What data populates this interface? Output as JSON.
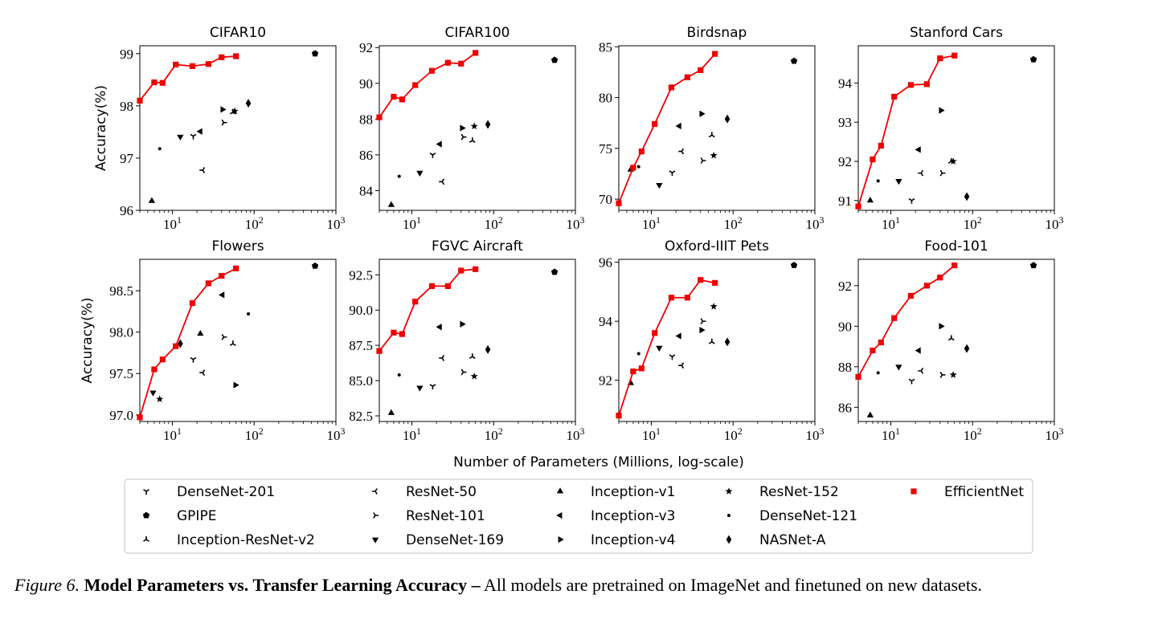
{
  "figure": {
    "xlabel": "Number of Parameters (Millions, log-scale)",
    "ylabel": "Accuracy(%)"
  },
  "caption": {
    "label": "Figure 6.",
    "title": "Model Parameters vs. Transfer Learning Accuracy –",
    "text": "All models are pretrained on ImageNet and finetuned on new datasets."
  },
  "legend": {
    "placement": "bottom-center",
    "entries": [
      {
        "name": "DenseNet-201",
        "marker": "tri-down-small"
      },
      {
        "name": "GPIPE",
        "marker": "pentagon"
      },
      {
        "name": "Inception-ResNet-v2",
        "marker": "tri-up-small"
      },
      {
        "name": "ResNet-50",
        "marker": "tri-left-small"
      },
      {
        "name": "ResNet-101",
        "marker": "tri-right-small"
      },
      {
        "name": "DenseNet-169",
        "marker": "triangle-down"
      },
      {
        "name": "Inception-v1",
        "marker": "triangle-up"
      },
      {
        "name": "Inception-v3",
        "marker": "triangle-left"
      },
      {
        "name": "Inception-v4",
        "marker": "triangle-right"
      },
      {
        "name": "ResNet-152",
        "marker": "star"
      },
      {
        "name": "DenseNet-121",
        "marker": "point"
      },
      {
        "name": "NASNet-A",
        "marker": "thin-diamond"
      },
      {
        "name": "EfficientNet",
        "marker": "square",
        "color": "#ee0000"
      }
    ]
  },
  "chart_data": [
    {
      "type": "scatter",
      "title": "CIFAR10",
      "xscale": "log",
      "xlim": [
        4,
        1000
      ],
      "ylim": [
        96,
        99.15
      ],
      "yticks": [
        "96",
        "97",
        "98",
        "99"
      ],
      "xticks": [
        "10^1",
        "10^2",
        "10^3"
      ],
      "ylabel_shown": true,
      "points": {
        "DenseNet-201": [
          18,
          97.42
        ],
        "GPIPE": [
          556,
          99.0
        ],
        "Inception-ResNet-v2": [
          55,
          97.88
        ],
        "ResNet-50": [
          23.5,
          96.77
        ],
        "ResNet-101": [
          42.5,
          97.68
        ],
        "DenseNet-169": [
          12.5,
          97.41
        ],
        "Inception-v1": [
          5.6,
          96.18
        ],
        "Inception-v3": [
          22,
          97.51
        ],
        "Inception-v4": [
          41,
          97.93
        ],
        "ResNet-152": [
          58,
          97.9
        ],
        "DenseNet-121": [
          7,
          97.18
        ],
        "NASNet-A": [
          85,
          98.05
        ]
      },
      "efficientnet": {
        "x": [
          4,
          6,
          7.6,
          11,
          17.6,
          27.6,
          40,
          60
        ],
        "y": [
          98.1,
          98.45,
          98.44,
          98.79,
          98.76,
          98.8,
          98.93,
          98.95
        ]
      }
    },
    {
      "type": "scatter",
      "title": "CIFAR100",
      "xscale": "log",
      "xlim": [
        4,
        1000
      ],
      "ylim": [
        82.9,
        92.1
      ],
      "yticks": [
        "84",
        "86",
        "88",
        "90",
        "92"
      ],
      "xticks": [
        "10^1",
        "10^2",
        "10^3"
      ],
      "ylabel_shown": false,
      "points": {
        "DenseNet-201": [
          18,
          86.0
        ],
        "GPIPE": [
          556,
          91.3
        ],
        "Inception-ResNet-v2": [
          55,
          86.8
        ],
        "ResNet-50": [
          23.5,
          84.5
        ],
        "ResNet-101": [
          42.5,
          87.0
        ],
        "DenseNet-169": [
          12.5,
          85.0
        ],
        "Inception-v1": [
          5.6,
          83.2
        ],
        "Inception-v3": [
          22,
          86.6
        ],
        "Inception-v4": [
          41,
          87.5
        ],
        "ResNet-152": [
          58,
          87.6
        ],
        "DenseNet-121": [
          7,
          84.8
        ],
        "NASNet-A": [
          85,
          87.7
        ]
      },
      "efficientnet": {
        "x": [
          4,
          6,
          7.6,
          11,
          17.6,
          27.6,
          40,
          60
        ],
        "y": [
          88.1,
          89.25,
          89.1,
          89.9,
          90.7,
          91.15,
          91.1,
          91.7
        ]
      }
    },
    {
      "type": "scatter",
      "title": "Birdsnap",
      "xscale": "log",
      "xlim": [
        4,
        1000
      ],
      "ylim": [
        68.9,
        85.1
      ],
      "yticks": [
        "70",
        "75",
        "80",
        "85"
      ],
      "xticks": [
        "10^1",
        "10^2",
        "10^3"
      ],
      "ylabel_shown": false,
      "points": {
        "DenseNet-201": [
          18,
          72.6
        ],
        "GPIPE": [
          556,
          83.6
        ],
        "Inception-ResNet-v2": [
          55,
          76.3
        ],
        "ResNet-50": [
          23.5,
          74.7
        ],
        "ResNet-101": [
          42.5,
          73.8
        ],
        "DenseNet-169": [
          12.5,
          71.4
        ],
        "Inception-v1": [
          5.6,
          72.9
        ],
        "Inception-v3": [
          22,
          77.2
        ],
        "Inception-v4": [
          41,
          78.4
        ],
        "ResNet-152": [
          58,
          74.3
        ],
        "DenseNet-121": [
          7,
          73.2
        ],
        "NASNet-A": [
          85,
          77.9
        ]
      },
      "efficientnet": {
        "x": [
          4,
          6,
          7.6,
          11,
          17.6,
          27.6,
          40,
          60
        ],
        "y": [
          69.6,
          73.1,
          74.7,
          77.4,
          81.0,
          82.0,
          82.7,
          84.3
        ]
      }
    },
    {
      "type": "scatter",
      "title": "Stanford Cars",
      "xscale": "log",
      "xlim": [
        4,
        1000
      ],
      "ylim": [
        90.75,
        94.95
      ],
      "yticks": [
        "91",
        "92",
        "93",
        "94"
      ],
      "xticks": [
        "10^1",
        "10^2",
        "10^3"
      ],
      "ylabel_shown": false,
      "points": {
        "DenseNet-201": [
          18,
          91.0
        ],
        "GPIPE": [
          556,
          94.6
        ],
        "Inception-ResNet-v2": [
          55,
          92.0
        ],
        "ResNet-50": [
          23.5,
          91.7
        ],
        "ResNet-101": [
          42.5,
          91.7
        ],
        "DenseNet-169": [
          12.5,
          91.5
        ],
        "Inception-v1": [
          5.6,
          91.0
        ],
        "Inception-v3": [
          22,
          92.3
        ],
        "Inception-v4": [
          41,
          93.3
        ],
        "ResNet-152": [
          58,
          92.0
        ],
        "DenseNet-121": [
          7,
          91.5
        ],
        "NASNet-A": [
          85,
          91.1
        ]
      },
      "efficientnet": {
        "x": [
          4,
          6,
          7.6,
          11,
          17.6,
          27.6,
          40,
          60
        ],
        "y": [
          90.85,
          92.05,
          92.4,
          93.65,
          93.95,
          93.97,
          94.63,
          94.7
        ]
      }
    },
    {
      "type": "scatter",
      "title": "Flowers",
      "xscale": "log",
      "xlim": [
        4,
        1000
      ],
      "ylim": [
        96.92,
        98.88
      ],
      "yticks": [
        "97.0",
        "97.5",
        "98.0",
        "98.5"
      ],
      "xticks": [
        "10^1",
        "10^2",
        "10^3"
      ],
      "ylabel_shown": true,
      "points": {
        "DenseNet-201": [
          18,
          97.67
        ],
        "GPIPE": [
          556,
          98.8
        ],
        "Inception-ResNet-v2": [
          55,
          97.86
        ],
        "ResNet-50": [
          23.5,
          97.51
        ],
        "ResNet-101": [
          42.5,
          97.94
        ],
        "DenseNet-169": [
          5.8,
          97.27
        ],
        "Inception-v1": [
          22,
          97.98
        ],
        "Inception-v3": [
          41,
          98.45
        ],
        "Inception-v4": [
          59,
          97.36
        ],
        "ResNet-152": [
          7,
          97.19
        ],
        "DenseNet-121": [
          85,
          98.22
        ],
        "NASNet-A": [
          12.5,
          97.86
        ]
      },
      "efficientnet": {
        "x": [
          4,
          6,
          7.6,
          11,
          17.6,
          27.6,
          40,
          60
        ],
        "y": [
          96.97,
          97.55,
          97.67,
          97.83,
          98.35,
          98.59,
          98.68,
          98.77
        ]
      }
    },
    {
      "type": "scatter",
      "title": "FGVC Aircraft",
      "xscale": "log",
      "xlim": [
        4,
        1000
      ],
      "ylim": [
        82.1,
        93.6
      ],
      "yticks": [
        "82.5",
        "85.0",
        "87.5",
        "90.0",
        "92.5"
      ],
      "xticks": [
        "10^1",
        "10^2",
        "10^3"
      ],
      "ylabel_shown": false,
      "points": {
        "DenseNet-201": [
          18,
          84.6
        ],
        "GPIPE": [
          556,
          92.7
        ],
        "Inception-ResNet-v2": [
          55,
          86.7
        ],
        "ResNet-50": [
          23.5,
          86.6
        ],
        "ResNet-101": [
          42.5,
          85.6
        ],
        "DenseNet-169": [
          12.5,
          84.5
        ],
        "Inception-v1": [
          5.6,
          82.7
        ],
        "Inception-v3": [
          22,
          88.8
        ],
        "Inception-v4": [
          41,
          89.0
        ],
        "ResNet-152": [
          58,
          85.3
        ],
        "DenseNet-121": [
          7,
          85.4
        ],
        "NASNet-A": [
          85,
          87.2
        ]
      },
      "efficientnet": {
        "x": [
          4,
          6,
          7.6,
          11,
          17.6,
          27.6,
          40,
          60
        ],
        "y": [
          87.1,
          88.4,
          88.3,
          90.6,
          91.7,
          91.7,
          92.8,
          92.9
        ]
      }
    },
    {
      "type": "scatter",
      "title": "Oxford-IIIT Pets",
      "xscale": "log",
      "xlim": [
        4,
        1000
      ],
      "ylim": [
        90.6,
        96.1
      ],
      "yticks": [
        "92",
        "94",
        "96"
      ],
      "xticks": [
        "10^1",
        "10^2",
        "10^3"
      ],
      "ylabel_shown": false,
      "points": {
        "DenseNet-201": [
          18,
          92.8
        ],
        "GPIPE": [
          556,
          95.9
        ],
        "Inception-ResNet-v2": [
          55,
          93.3
        ],
        "ResNet-50": [
          23.5,
          92.5
        ],
        "ResNet-101": [
          42.5,
          94.0
        ],
        "DenseNet-169": [
          12.5,
          93.1
        ],
        "Inception-v1": [
          5.6,
          91.9
        ],
        "Inception-v3": [
          22,
          93.5
        ],
        "Inception-v4": [
          41,
          93.7
        ],
        "ResNet-152": [
          58,
          94.5
        ],
        "DenseNet-121": [
          7,
          92.9
        ],
        "NASNet-A": [
          85,
          93.3
        ]
      },
      "efficientnet": {
        "x": [
          4,
          6,
          7.6,
          11,
          17.6,
          27.6,
          40,
          60
        ],
        "y": [
          90.8,
          92.3,
          92.4,
          93.6,
          94.8,
          94.8,
          95.4,
          95.3
        ]
      }
    },
    {
      "type": "scatter",
      "title": "Food-101",
      "xscale": "log",
      "xlim": [
        4,
        1000
      ],
      "ylim": [
        85.3,
        93.3
      ],
      "yticks": [
        "86",
        "88",
        "90",
        "92"
      ],
      "xticks": [
        "10^1",
        "10^2",
        "10^3"
      ],
      "ylabel_shown": false,
      "points": {
        "DenseNet-201": [
          18,
          87.3
        ],
        "GPIPE": [
          556,
          93.0
        ],
        "Inception-ResNet-v2": [
          55,
          89.4
        ],
        "ResNet-50": [
          23.5,
          87.8
        ],
        "ResNet-101": [
          42.5,
          87.6
        ],
        "DenseNet-169": [
          12.5,
          88.0
        ],
        "Inception-v1": [
          5.6,
          85.6
        ],
        "Inception-v3": [
          22,
          88.8
        ],
        "Inception-v4": [
          41,
          90.0
        ],
        "ResNet-152": [
          58,
          87.6
        ],
        "DenseNet-121": [
          7,
          87.7
        ],
        "NASNet-A": [
          85,
          88.9
        ]
      },
      "efficientnet": {
        "x": [
          4,
          6,
          7.6,
          11,
          17.6,
          27.6,
          40,
          60
        ],
        "y": [
          87.5,
          88.8,
          89.2,
          90.4,
          91.5,
          92.0,
          92.4,
          93.0
        ]
      }
    }
  ]
}
